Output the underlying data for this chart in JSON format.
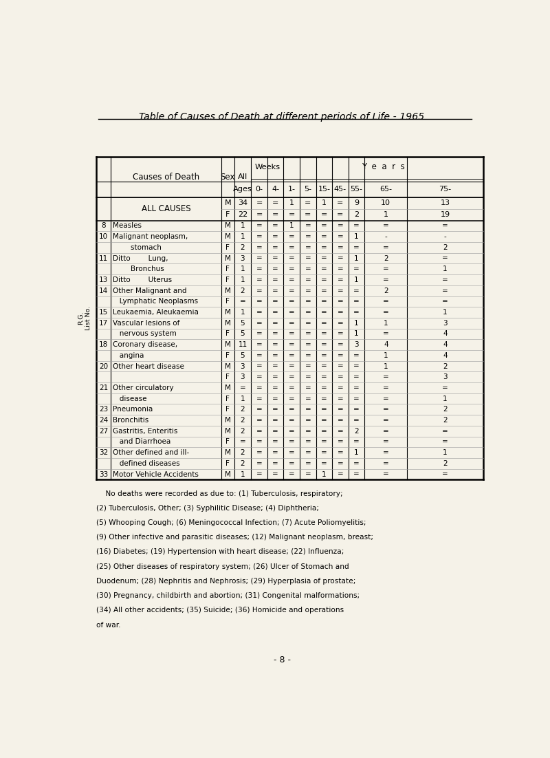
{
  "title": "Table of Causes of Death at different periods of Life - 1965",
  "bg_color": "#f5f2e8",
  "rows": [
    {
      "num": "8",
      "cause": "Measles",
      "sex": "M",
      "all": "1",
      "w0": "=",
      "w4": "=",
      "y1": "1",
      "y5": "=",
      "y15": "=",
      "y45": "=",
      "y55": "=",
      "y65": "=",
      "y75": "="
    },
    {
      "num": "10",
      "cause": "Malignant neoplasm,",
      "sex": "M",
      "all": "1",
      "w0": "=",
      "w4": "=",
      "y1": "=",
      "y5": "=",
      "y15": "=",
      "y45": "=",
      "y55": "1",
      "y65": "-",
      "y75": "-"
    },
    {
      "num": "",
      "cause": "        stomach",
      "sex": "F",
      "all": "2",
      "w0": "=",
      "w4": "=",
      "y1": "=",
      "y5": "=",
      "y15": "=",
      "y45": "=",
      "y55": "=",
      "y65": "=",
      "y75": "2"
    },
    {
      "num": "11",
      "cause": "Ditto        Lung,",
      "sex": "M",
      "all": "3",
      "w0": "=",
      "w4": "=",
      "y1": "=",
      "y5": "=",
      "y15": "=",
      "y45": "=",
      "y55": "1",
      "y65": "2",
      "y75": "="
    },
    {
      "num": "",
      "cause": "        Bronchus",
      "sex": "F",
      "all": "1",
      "w0": "=",
      "w4": "=",
      "y1": "=",
      "y5": "=",
      "y15": "=",
      "y45": "=",
      "y55": "=",
      "y65": "=",
      "y75": "1"
    },
    {
      "num": "13",
      "cause": "Ditto        Uterus",
      "sex": "F",
      "all": "1",
      "w0": "=",
      "w4": "=",
      "y1": "=",
      "y5": "=",
      "y15": "=",
      "y45": "=",
      "y55": "1",
      "y65": "=",
      "y75": "="
    },
    {
      "num": "14",
      "cause": "Other Malignant and",
      "sex": "M",
      "all": "2",
      "w0": "=",
      "w4": "=",
      "y1": "=",
      "y5": "=",
      "y15": "=",
      "y45": "=",
      "y55": "=",
      "y65": "2",
      "y75": "="
    },
    {
      "num": "",
      "cause": "   Lymphatic Neoplasms",
      "sex": "F",
      "all": "=",
      "w0": "=",
      "w4": "=",
      "y1": "=",
      "y5": "=",
      "y15": "=",
      "y45": "=",
      "y55": "=",
      "y65": "=",
      "y75": "="
    },
    {
      "num": "15",
      "cause": "Leukaemia, Aleukaemia",
      "sex": "M",
      "all": "1",
      "w0": "=",
      "w4": "=",
      "y1": "=",
      "y5": "=",
      "y15": "=",
      "y45": "=",
      "y55": "=",
      "y65": "=",
      "y75": "1"
    },
    {
      "num": "17",
      "cause": "Vascular lesions of",
      "sex": "M",
      "all": "5",
      "w0": "=",
      "w4": "=",
      "y1": "=",
      "y5": "=",
      "y15": "=",
      "y45": "=",
      "y55": "1",
      "y65": "1",
      "y75": "3"
    },
    {
      "num": "",
      "cause": "   nervous system",
      "sex": "F",
      "all": "5",
      "w0": "=",
      "w4": "=",
      "y1": "=",
      "y5": "=",
      "y15": "=",
      "y45": "=",
      "y55": "1",
      "y65": "=",
      "y75": "4"
    },
    {
      "num": "18",
      "cause": "Coronary disease,",
      "sex": "M",
      "all": "11",
      "w0": "=",
      "w4": "=",
      "y1": "=",
      "y5": "=",
      "y15": "=",
      "y45": "=",
      "y55": "3",
      "y65": "4",
      "y75": "4"
    },
    {
      "num": "",
      "cause": "   angina",
      "sex": "F",
      "all": "5",
      "w0": "=",
      "w4": "=",
      "y1": "=",
      "y5": "=",
      "y15": "=",
      "y45": "=",
      "y55": "=",
      "y65": "1",
      "y75": "4"
    },
    {
      "num": "20",
      "cause": "Other heart disease",
      "sex": "M",
      "all": "3",
      "w0": "=",
      "w4": "=",
      "y1": "=",
      "y5": "=",
      "y15": "=",
      "y45": "=",
      "y55": "=",
      "y65": "1",
      "y75": "2"
    },
    {
      "num": "",
      "cause": "",
      "sex": "F",
      "all": "3",
      "w0": "=",
      "w4": "=",
      "y1": "=",
      "y5": "=",
      "y15": "=",
      "y45": "=",
      "y55": "=",
      "y65": "=",
      "y75": "3"
    },
    {
      "num": "21",
      "cause": "Other circulatory",
      "sex": "M",
      "all": "=",
      "w0": "=",
      "w4": "=",
      "y1": "=",
      "y5": "=",
      "y15": "=",
      "y45": "=",
      "y55": "=",
      "y65": "=",
      "y75": "="
    },
    {
      "num": "",
      "cause": "   disease",
      "sex": "F",
      "all": "1",
      "w0": "=",
      "w4": "=",
      "y1": "=",
      "y5": "=",
      "y15": "=",
      "y45": "=",
      "y55": "=",
      "y65": "=",
      "y75": "1"
    },
    {
      "num": "23",
      "cause": "Pneumonia",
      "sex": "F",
      "all": "2",
      "w0": "=",
      "w4": "=",
      "y1": "=",
      "y5": "=",
      "y15": "=",
      "y45": "=",
      "y55": "=",
      "y65": "=",
      "y75": "2"
    },
    {
      "num": "24",
      "cause": "Bronchitis",
      "sex": "M",
      "all": "2",
      "w0": "=",
      "w4": "=",
      "y1": "=",
      "y5": "=",
      "y15": "=",
      "y45": "=",
      "y55": "=",
      "y65": "=",
      "y75": "2"
    },
    {
      "num": "27",
      "cause": "Gastritis, Enteritis",
      "sex": "M",
      "all": "2",
      "w0": "=",
      "w4": "=",
      "y1": "=",
      "y5": "=",
      "y15": "=",
      "y45": "=",
      "y55": "2",
      "y65": "=",
      "y75": "="
    },
    {
      "num": "",
      "cause": "   and Diarrhoea",
      "sex": "F",
      "all": "=",
      "w0": "=",
      "w4": "=",
      "y1": "=",
      "y5": "=",
      "y15": "=",
      "y45": "=",
      "y55": "=",
      "y65": "=",
      "y75": "="
    },
    {
      "num": "32",
      "cause": "Other defined and ill-",
      "sex": "M",
      "all": "2",
      "w0": "=",
      "w4": "=",
      "y1": "=",
      "y5": "=",
      "y15": "=",
      "y45": "=",
      "y55": "1",
      "y65": "=",
      "y75": "1"
    },
    {
      "num": "",
      "cause": "   defined diseases",
      "sex": "F",
      "all": "2",
      "w0": "=",
      "w4": "=",
      "y1": "=",
      "y5": "=",
      "y15": "=",
      "y45": "=",
      "y55": "=",
      "y65": "=",
      "y75": "2"
    },
    {
      "num": "33",
      "cause": "Motor Vehicle Accidents",
      "sex": "M",
      "all": "1",
      "w0": "=",
      "w4": "=",
      "y1": "=",
      "y5": "=",
      "y15": "1",
      "y45": "=",
      "y55": "=",
      "y65": "=",
      "y75": "="
    }
  ],
  "footnote_lines": [
    "    No deaths were recorded as due to: (1) Tuberculosis, respiratory;",
    "(2) Tuberculosis, Other; (3) Syphilitic Disease; (4) Diphtheria;",
    "(5) Whooping Cough; (6) Meningococcal Infection; (7) Acute Poliomyelitis;",
    "(9) Other infective and parasitic diseases; (12) Malignant neoplasm, breast;",
    "(16) Diabetes; (19) Hypertension with heart disease; (22) Influenza;",
    "(25) Other diseases of respiratory system; (26) Ulcer of Stomach and",
    "Duodenum; (28) Nephritis and Nephrosis; (29) Hyperplasia of prostate;",
    "(30) Pregnancy, childbirth and abortion; (31) Congenital malformations;",
    "(34) All other accidents; (35) Suicide; (36) Homicide and operations",
    "of war."
  ],
  "page_number": "- 8 -"
}
